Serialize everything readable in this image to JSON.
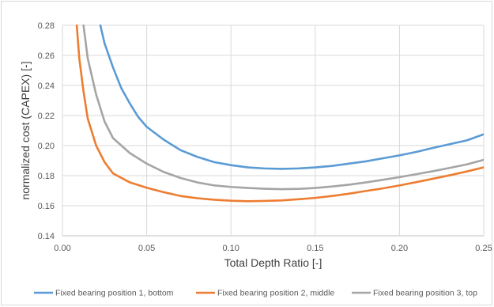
{
  "chart_data": {
    "type": "line",
    "xlabel": "Total Depth Ratio [-]",
    "ylabel": "normalized cost (CAPEX) [-]",
    "xlim": [
      0,
      0.25
    ],
    "ylim": [
      0.14,
      0.28
    ],
    "xticks": [
      "0.00",
      "0.05",
      "0.10",
      "0.15",
      "0.20",
      "0.25"
    ],
    "yticks": [
      "0.14",
      "0.16",
      "0.18",
      "0.20",
      "0.22",
      "0.24",
      "0.26",
      "0.28"
    ],
    "grid": true,
    "legend_position": "bottom",
    "series": [
      {
        "name": "Fixed bearing position 1, bottom",
        "color": "#5b9bd5",
        "points": [
          [
            0.0225,
            0.28
          ],
          [
            0.025,
            0.268
          ],
          [
            0.03,
            0.252
          ],
          [
            0.035,
            0.238
          ],
          [
            0.04,
            0.228
          ],
          [
            0.045,
            0.219
          ],
          [
            0.05,
            0.2125
          ],
          [
            0.06,
            0.204
          ],
          [
            0.07,
            0.197
          ],
          [
            0.08,
            0.1925
          ],
          [
            0.09,
            0.189
          ],
          [
            0.1,
            0.187
          ],
          [
            0.11,
            0.1855
          ],
          [
            0.12,
            0.1848
          ],
          [
            0.13,
            0.1845
          ],
          [
            0.14,
            0.1848
          ],
          [
            0.15,
            0.1855
          ],
          [
            0.16,
            0.1865
          ],
          [
            0.17,
            0.188
          ],
          [
            0.18,
            0.1895
          ],
          [
            0.19,
            0.1915
          ],
          [
            0.2,
            0.1935
          ],
          [
            0.21,
            0.1958
          ],
          [
            0.22,
            0.1985
          ],
          [
            0.23,
            0.201
          ],
          [
            0.24,
            0.2035
          ],
          [
            0.25,
            0.2075
          ]
        ]
      },
      {
        "name": "Fixed bearing position 2, middle",
        "color": "#ed7d31",
        "points": [
          [
            0.0085,
            0.28
          ],
          [
            0.01,
            0.258
          ],
          [
            0.0125,
            0.236
          ],
          [
            0.015,
            0.218
          ],
          [
            0.02,
            0.2
          ],
          [
            0.025,
            0.189
          ],
          [
            0.03,
            0.1815
          ],
          [
            0.04,
            0.1755
          ],
          [
            0.05,
            0.172
          ],
          [
            0.06,
            0.169
          ],
          [
            0.07,
            0.1665
          ],
          [
            0.08,
            0.165
          ],
          [
            0.09,
            0.164
          ],
          [
            0.1,
            0.1633
          ],
          [
            0.11,
            0.163
          ],
          [
            0.12,
            0.1632
          ],
          [
            0.13,
            0.1635
          ],
          [
            0.14,
            0.1643
          ],
          [
            0.15,
            0.1652
          ],
          [
            0.16,
            0.1665
          ],
          [
            0.17,
            0.168
          ],
          [
            0.18,
            0.1698
          ],
          [
            0.19,
            0.1715
          ],
          [
            0.2,
            0.1735
          ],
          [
            0.21,
            0.1757
          ],
          [
            0.22,
            0.178
          ],
          [
            0.23,
            0.1803
          ],
          [
            0.24,
            0.1828
          ],
          [
            0.25,
            0.1855
          ]
        ]
      },
      {
        "name": "Fixed bearing position 3, top",
        "color": "#a5a5a5",
        "points": [
          [
            0.0125,
            0.28
          ],
          [
            0.015,
            0.258
          ],
          [
            0.02,
            0.234
          ],
          [
            0.025,
            0.216
          ],
          [
            0.03,
            0.205
          ],
          [
            0.04,
            0.195
          ],
          [
            0.05,
            0.188
          ],
          [
            0.06,
            0.1825
          ],
          [
            0.07,
            0.1785
          ],
          [
            0.08,
            0.1755
          ],
          [
            0.09,
            0.1735
          ],
          [
            0.1,
            0.1725
          ],
          [
            0.11,
            0.1718
          ],
          [
            0.12,
            0.1713
          ],
          [
            0.13,
            0.171
          ],
          [
            0.14,
            0.1712
          ],
          [
            0.15,
            0.1718
          ],
          [
            0.16,
            0.1728
          ],
          [
            0.17,
            0.174
          ],
          [
            0.18,
            0.1755
          ],
          [
            0.19,
            0.1772
          ],
          [
            0.2,
            0.179
          ],
          [
            0.21,
            0.181
          ],
          [
            0.22,
            0.183
          ],
          [
            0.23,
            0.1852
          ],
          [
            0.24,
            0.1875
          ],
          [
            0.25,
            0.1905
          ]
        ]
      }
    ]
  }
}
